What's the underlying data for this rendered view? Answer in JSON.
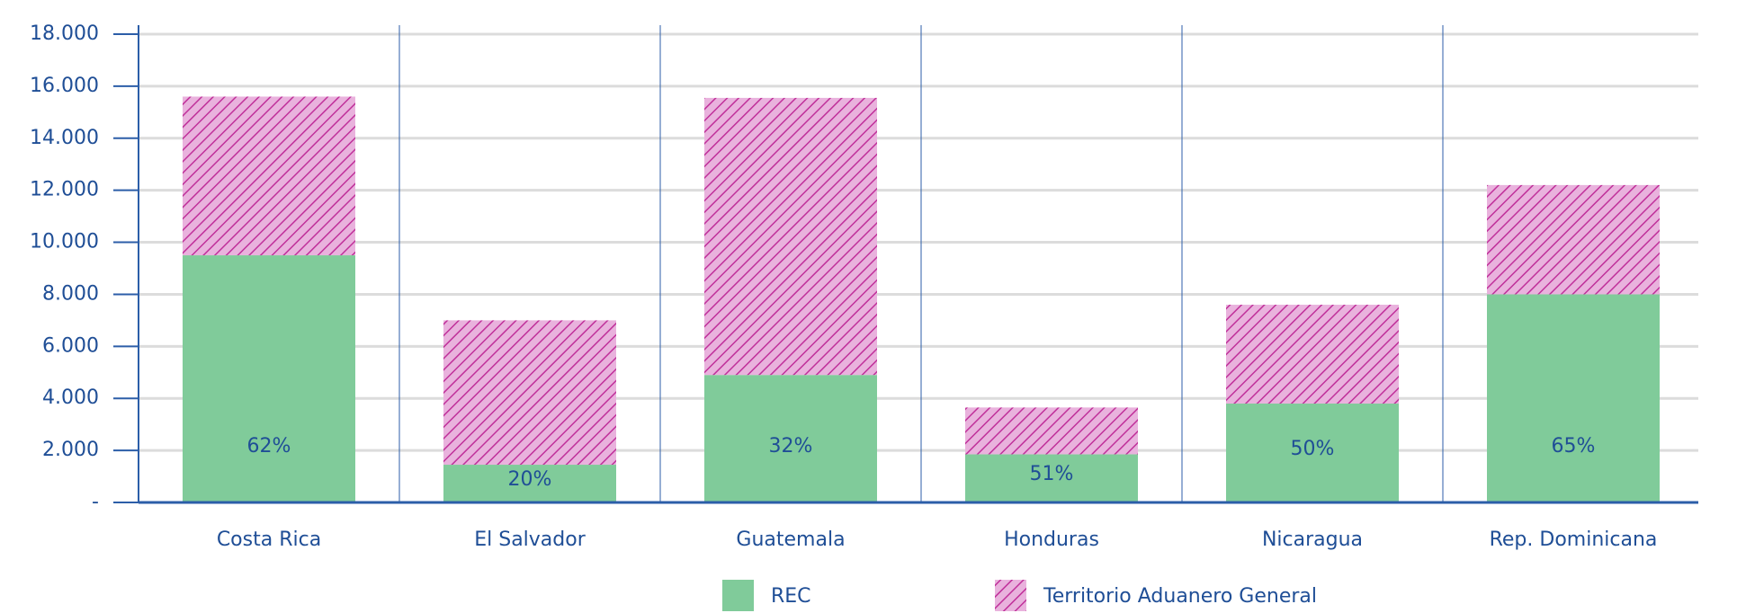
{
  "chart_data": {
    "type": "stacked_bar",
    "categories": [
      "Costa Rica",
      "El Salvador",
      "Guatemala",
      "Honduras",
      "Nicaragua",
      "Rep. Dominicana"
    ],
    "series": [
      {
        "name": "REC",
        "color": "#80cb9a",
        "values": [
          9500,
          1450,
          4900,
          1850,
          3800,
          8000
        ]
      },
      {
        "name": "Territorio Aduanero General",
        "color": "#c0309a",
        "pattern": "hatch",
        "values": [
          6100,
          5550,
          10650,
          1800,
          3800,
          4200
        ]
      }
    ],
    "percent_labels": [
      "62%",
      "20%",
      "32%",
      "51%",
      "50%",
      "65%"
    ],
    "ylim": [
      0,
      18000
    ],
    "yticks": [
      {
        "value": 0,
        "label": "-"
      },
      {
        "value": 2000,
        "label": "2.000"
      },
      {
        "value": 4000,
        "label": "4.000"
      },
      {
        "value": 6000,
        "label": "6.000"
      },
      {
        "value": 8000,
        "label": "8.000"
      },
      {
        "value": 10000,
        "label": "10.000"
      },
      {
        "value": 12000,
        "label": "12.000"
      },
      {
        "value": 14000,
        "label": "14.000"
      },
      {
        "value": 16000,
        "label": "16.000"
      },
      {
        "value": 18000,
        "label": "18.000"
      }
    ],
    "grid": true,
    "legend": "bottom"
  }
}
